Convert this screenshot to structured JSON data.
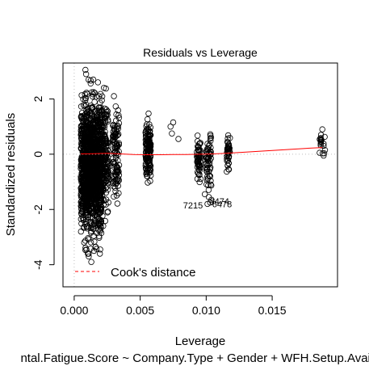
{
  "chart_data": {
    "type": "scatter",
    "title": "Residuals vs Leverage",
    "xlabel": "Leverage",
    "ylabel": "Standardized residuals",
    "subtitle": "ntal.Fatigue.Score ~ Company.Type + Gender + WFH.Setup.Availa",
    "xlim": [
      -0.00085,
      0.01995
    ],
    "ylim": [
      -4.8,
      3.3
    ],
    "x_ticks": [
      0.0,
      0.005,
      0.01,
      0.015
    ],
    "x_tick_labels": [
      "0.000",
      "0.005",
      "0.010",
      "0.015"
    ],
    "y_ticks": [
      -4,
      -2,
      0,
      2
    ],
    "y_tick_labels": [
      "-4",
      "-2",
      "0",
      "2"
    ],
    "legend": {
      "label": "Cook's distance",
      "position": "bottom-left",
      "color": "#ff0000"
    },
    "reference_lines": {
      "y": 0,
      "x": 0,
      "color": "#bebebe",
      "style": "dotted"
    },
    "smooth_line": {
      "color": "#ff0000",
      "x": [
        0.0005,
        0.0015,
        0.0025,
        0.0035,
        0.0045,
        0.0055,
        0.0065,
        0.0075,
        0.0085,
        0.0095,
        0.0105,
        0.0115,
        0.0125,
        0.0135,
        0.0145,
        0.0155,
        0.0165,
        0.0175,
        0.0188
      ],
      "y": [
        0.01,
        0.02,
        0.03,
        0.01,
        -0.01,
        -0.02,
        -0.02,
        -0.01,
        -0.01,
        0.0,
        0.01,
        0.03,
        0.06,
        0.09,
        0.12,
        0.15,
        0.18,
        0.21,
        0.24
      ]
    },
    "clusters": [
      {
        "x_range": [
          0.0005,
          0.0021
        ],
        "y_range": [
          -3.6,
          2.7
        ],
        "count": 1400
      },
      {
        "x_range": [
          0.0021,
          0.0026
        ],
        "y_range": [
          -2.6,
          2.4
        ],
        "count": 160
      },
      {
        "x_range": [
          0.0029,
          0.0034
        ],
        "y_range": [
          -2.3,
          2.1
        ],
        "count": 110
      },
      {
        "x_range": [
          0.0054,
          0.0058
        ],
        "y_range": [
          -1.3,
          1.5
        ],
        "count": 140
      },
      {
        "x_range": [
          0.0093,
          0.0096
        ],
        "y_range": [
          -1.2,
          1.0
        ],
        "count": 55
      },
      {
        "x_range": [
          0.01,
          0.0104
        ],
        "y_range": [
          -1.7,
          1.0
        ],
        "count": 60
      },
      {
        "x_range": [
          0.0115,
          0.0118
        ],
        "y_range": [
          -0.8,
          1.1
        ],
        "count": 40
      },
      {
        "x_range": [
          0.0186,
          0.019
        ],
        "y_range": [
          0.0,
          0.9
        ],
        "count": 12
      }
    ],
    "points": [
      {
        "x": 0.00085,
        "y": 3.05
      },
      {
        "x": 0.0009,
        "y": 2.9
      },
      {
        "x": 0.0011,
        "y": -3.7
      },
      {
        "x": 0.0013,
        "y": -3.9
      },
      {
        "x": 0.0015,
        "y": -3.5
      },
      {
        "x": 0.0018,
        "y": 2.6
      },
      {
        "x": 0.0075,
        "y": 1.15
      },
      {
        "x": 0.0073,
        "y": 1.0
      },
      {
        "x": 0.0074,
        "y": 0.75
      },
      {
        "x": 0.0079,
        "y": 0.55
      },
      {
        "x": 0.0102,
        "y": -1.55
      },
      {
        "x": 0.0104,
        "y": -1.65
      },
      {
        "x": 0.0103,
        "y": -1.75
      },
      {
        "x": 0.0099,
        "y": -1.45
      },
      {
        "x": 0.0101,
        "y": -1.8
      },
      {
        "x": 0.0189,
        "y": -0.05
      },
      {
        "x": 0.0188,
        "y": 0.9
      },
      {
        "x": 0.0187,
        "y": 0.55
      },
      {
        "x": 0.0186,
        "y": 0.05
      },
      {
        "x": 0.0189,
        "y": 0.3
      },
      {
        "x": 0.0187,
        "y": 0.7
      },
      {
        "x": 0.019,
        "y": 0.15
      }
    ],
    "annotations": [
      {
        "text": "7215",
        "x": 0.009,
        "y": -1.85
      },
      {
        "text": "8474",
        "x": 0.011,
        "y": -1.7
      },
      {
        "text": "6478",
        "x": 0.0112,
        "y": -1.8
      }
    ]
  }
}
